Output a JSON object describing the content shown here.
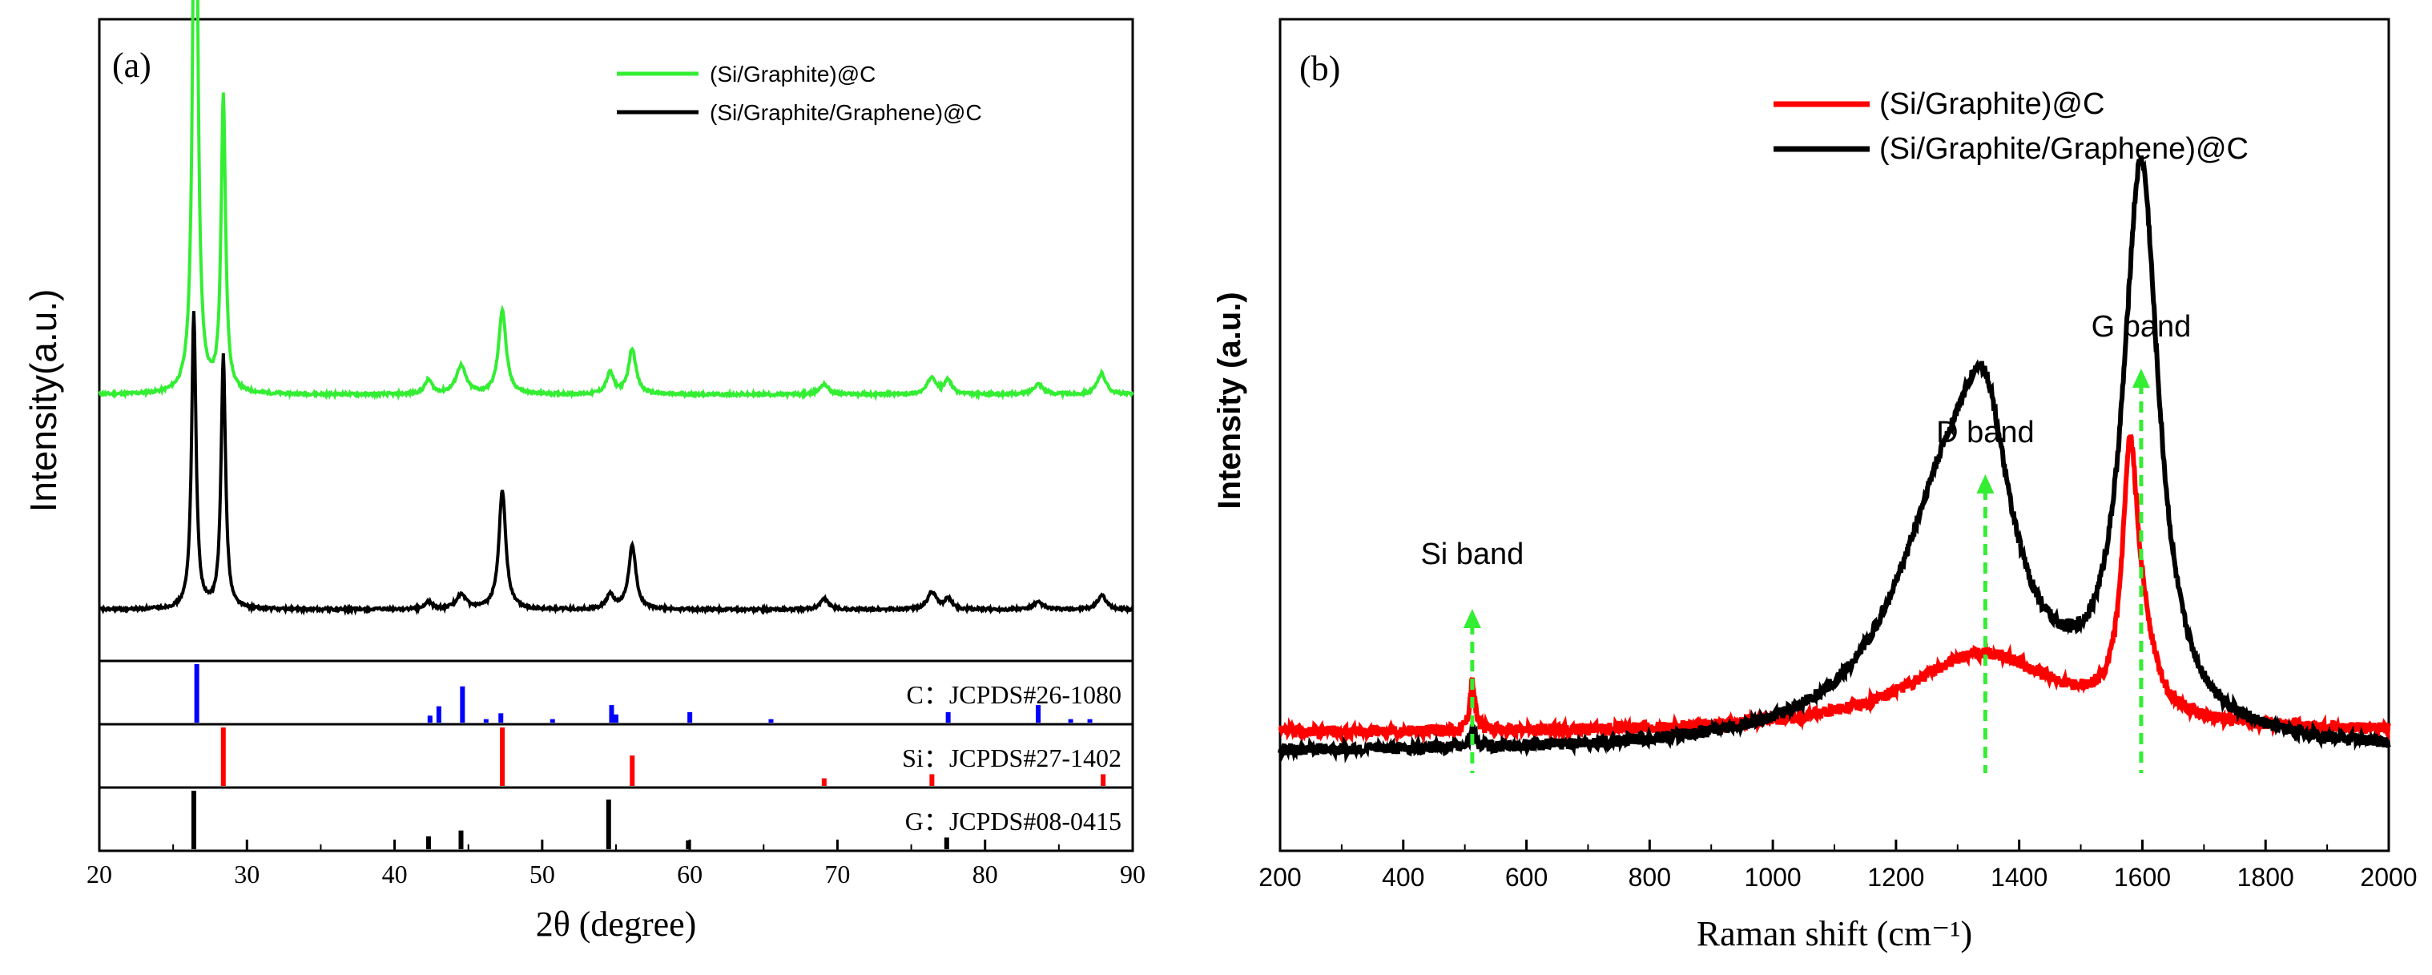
{
  "chart_data": [
    {
      "type": "line",
      "panel_label": "(a)",
      "xlabel": "2θ (degree)",
      "ylabel": "Intensity(a.u.)",
      "xlim": [
        20,
        90
      ],
      "xticks": [
        20,
        30,
        40,
        50,
        60,
        70,
        80,
        90
      ],
      "y_ticks_shown": false,
      "legend_position": "top-right",
      "series": [
        {
          "name": "(Si/Graphite)@C",
          "color": "#33ee33",
          "baseline": 0.355,
          "peaks": [
            [
              26.5,
              1.0,
              0.18
            ],
            [
              28.4,
              0.42,
              0.18
            ],
            [
              42.3,
              0.02,
              0.3
            ],
            [
              44.5,
              0.04,
              0.4
            ],
            [
              47.3,
              0.12,
              0.3
            ],
            [
              54.6,
              0.03,
              0.3
            ],
            [
              56.1,
              0.065,
              0.3
            ],
            [
              69.1,
              0.015,
              0.35
            ],
            [
              76.4,
              0.025,
              0.35
            ],
            [
              77.5,
              0.02,
              0.3
            ],
            [
              83.6,
              0.015,
              0.4
            ],
            [
              87.9,
              0.03,
              0.35
            ]
          ]
        },
        {
          "name": "(Si/Graphite/Graphene)@C",
          "color": "#000000",
          "baseline": 0.05,
          "peaks": [
            [
              26.4,
              0.42,
              0.18
            ],
            [
              28.4,
              0.36,
              0.18
            ],
            [
              42.3,
              0.01,
              0.3
            ],
            [
              44.5,
              0.02,
              0.4
            ],
            [
              47.3,
              0.17,
              0.28
            ],
            [
              54.6,
              0.02,
              0.3
            ],
            [
              56.1,
              0.09,
              0.3
            ],
            [
              69.1,
              0.015,
              0.35
            ],
            [
              76.4,
              0.025,
              0.35
            ],
            [
              77.5,
              0.015,
              0.3
            ],
            [
              83.6,
              0.01,
              0.4
            ],
            [
              87.9,
              0.02,
              0.35
            ]
          ]
        }
      ],
      "reference_panels": [
        {
          "label": "C：JCPDS#26-1080",
          "color": "#0000ff",
          "sticks": [
            [
              26.6,
              1.0
            ],
            [
              42.4,
              0.12
            ],
            [
              43.0,
              0.28
            ],
            [
              44.6,
              0.62
            ],
            [
              46.2,
              0.06
            ],
            [
              47.2,
              0.16
            ],
            [
              50.7,
              0.06
            ],
            [
              54.7,
              0.3
            ],
            [
              55.0,
              0.14
            ],
            [
              60.0,
              0.18
            ],
            [
              65.5,
              0.06
            ],
            [
              77.5,
              0.18
            ],
            [
              83.6,
              0.3
            ],
            [
              85.8,
              0.06
            ],
            [
              87.1,
              0.06
            ]
          ]
        },
        {
          "label": "Si：JCPDS#27-1402",
          "color": "#ff0000",
          "sticks": [
            [
              28.4,
              1.0
            ],
            [
              47.3,
              1.0
            ],
            [
              56.1,
              0.52
            ],
            [
              69.1,
              0.13
            ],
            [
              76.4,
              0.2
            ],
            [
              88.0,
              0.2
            ]
          ]
        },
        {
          "label": "G：JCPDS#08-0415",
          "color": "#000000",
          "sticks": [
            [
              26.4,
              1.0
            ],
            [
              42.3,
              0.22
            ],
            [
              44.5,
              0.32
            ],
            [
              54.5,
              0.85
            ],
            [
              59.9,
              0.15
            ],
            [
              77.4,
              0.2
            ]
          ]
        }
      ]
    },
    {
      "type": "line",
      "panel_label": "(b)",
      "xlabel": "Raman shift (cm⁻¹)",
      "ylabel": "Intensity (a.u.)",
      "xlim": [
        200,
        2000
      ],
      "xticks": [
        200,
        400,
        600,
        800,
        1000,
        1200,
        1400,
        1600,
        1800,
        2000
      ],
      "y_ticks_shown": false,
      "legend_position": "top-right",
      "series": [
        {
          "name": "(Si/Graphite)@C",
          "color": "#ff0000",
          "baseline": 0.2,
          "peaks": [
            [
              512,
              0.05,
              5
            ],
            [
              1340,
              0.08,
              150
            ],
            [
              1580,
              0.24,
              15
            ],
            [
              1600,
              0.06,
              25
            ]
          ]
        },
        {
          "name": "(Si/Graphite/Graphene)@C",
          "color": "#000000",
          "baseline": 0.18,
          "peaks": [
            [
              512,
              0.02,
              5
            ],
            [
              1290,
              0.26,
              110
            ],
            [
              1345,
              0.17,
              45
            ],
            [
              1598,
              0.57,
              35
            ]
          ]
        }
      ],
      "annotations": [
        {
          "text": "Si band",
          "x": 512
        },
        {
          "text": "D band",
          "x": 1345
        },
        {
          "text": "G band",
          "x": 1598
        }
      ]
    }
  ]
}
